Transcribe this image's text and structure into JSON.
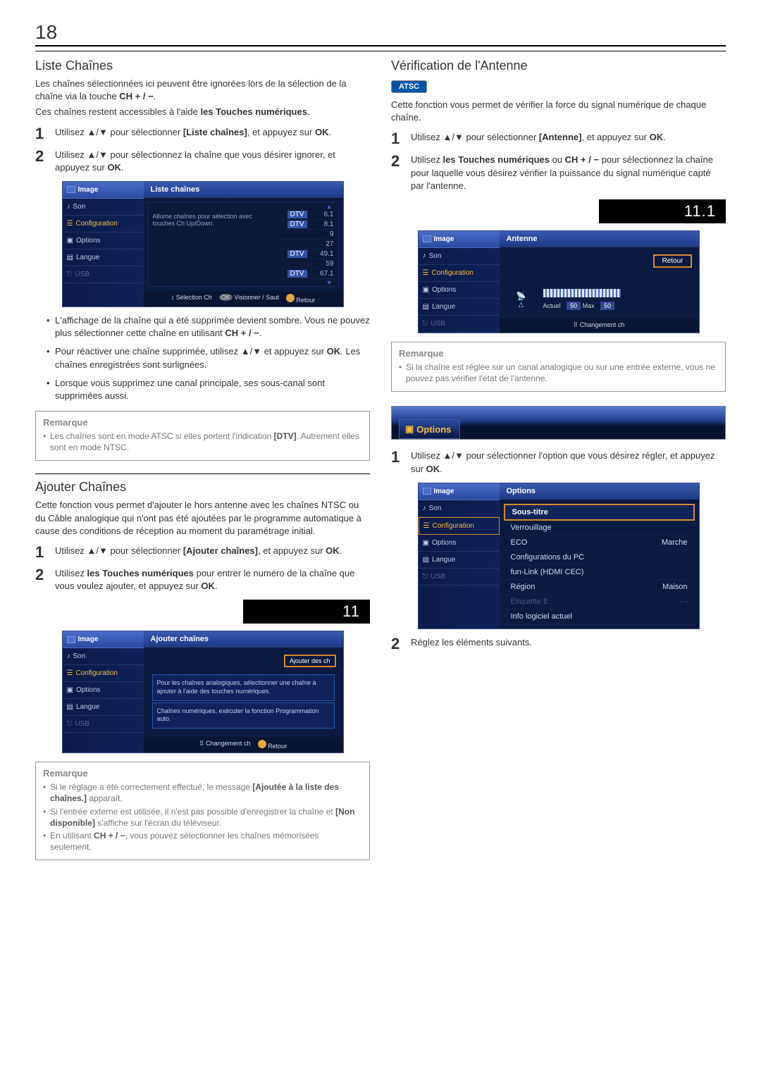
{
  "page_number": "18",
  "left": {
    "liste_chaines": {
      "title": "Liste Chaînes",
      "intro1": "Les chaînes sélectionnées ici peuvent être ignorées lors de la sélection de la chaîne via la touche ",
      "chplus": "CH + / −",
      "intro1b": ".",
      "intro2a": "Ces chaînes restent accessibles à l'aide ",
      "intro2b": "les Touches numériques",
      "intro2c": ".",
      "step1a": "Utilisez ▲/▼ pour sélectionner ",
      "step1b": "[Liste chaînes]",
      "step1c": ", et appuyez sur ",
      "step1d": "OK",
      "step1e": ".",
      "step2a": "Utilisez ▲/▼ pour sélectionnez la chaîne que vous désirer ignorer, et appuyez sur ",
      "step2b": "OK",
      "step2c": ".",
      "bullets": {
        "b1a": "L'affichage de la chaîne qui a été supprimée devient sombre. Vous ne pouvez plus sélectionner cette chaîne en utilisant ",
        "b1b": "CH + / −",
        "b1c": ".",
        "b2a": "Pour réactiver une chaîne supprimée, utilisez ▲/▼ et appuyez sur ",
        "b2b": "OK",
        "b2c": ". Les chaînes enregistrées sont surlignées.",
        "b3": "Lorsque vous supprimez une canal principale, ses sous-canal sont supprimées aussi."
      },
      "note": {
        "title": "Remarque",
        "n1a": "Les chaînes sont en mode ATSC si elles portent l'indication ",
        "n1b": "[DTV]",
        "n1c": ". Autrement elles sont en mode NTSC."
      },
      "tv": {
        "header": "Liste chaînes",
        "hint": "Allume chaînes pour sélection avec touches Ch Up/Down.",
        "rows": [
          {
            "tag": "DTV",
            "num": "6.1",
            "dim": true
          },
          {
            "tag": "DTV",
            "num": "8.1"
          },
          {
            "tag": "",
            "num": "9",
            "dim": true
          },
          {
            "tag": "",
            "num": "27",
            "dim": true
          },
          {
            "tag": "DTV",
            "num": "49.1",
            "dim": true
          },
          {
            "tag": "",
            "num": "59",
            "dim": true
          },
          {
            "tag": "DTV",
            "num": "67.1"
          }
        ],
        "foot1": "Sélection Ch",
        "foot2": "Visionner / Saut",
        "foot3": "Retour"
      }
    },
    "ajouter": {
      "title": "Ajouter Chaînes",
      "intro": "Cette fonction vous permet d'ajouter le hors antenne avec les chaînes NTSC ou du Câble analogique qui n'ont pas été ajoutées par le programme automatique à cause des conditions de réception au moment du paramétrage initial.",
      "step1a": "Utilisez ▲/▼ pour sélectionner ",
      "step1b": "[Ajouter chaînes]",
      "step1c": ", et appuyez sur ",
      "step1d": "OK",
      "step1e": ".",
      "step2a": "Utilisez ",
      "step2b": "les Touches numériques",
      "step2c": " pour entrer le numéro de la chaîne que vous voulez ajouter, et appuyez sur ",
      "step2d": "OK",
      "step2e": ".",
      "channel_display": "11",
      "tv": {
        "header": "Ajouter chaînes",
        "btn": "Ajouter des ch",
        "text1": "Pour les chaînes analogiques, sélectionner une chaîne à ajouter à l'aide des touches numériques.",
        "text2": "Chaînes numériques, exécuter la fonction Programmation auto.",
        "foot1": "Changement ch",
        "foot2": "Retour"
      },
      "note": {
        "title": "Remarque",
        "n1a": "Si le réglage a été correctement effectué, le message ",
        "n1b": "[Ajoutée à la liste des chaînes.]",
        "n1c": " apparaît.",
        "n2a": "Si l'entrée externe est utilisée, il n'est pas possible d'enregistrer la chaîne et ",
        "n2b": "[Non disponible]",
        "n2c": " s'affiche sur l'écran du téléviseur.",
        "n3a": "En utilisant ",
        "n3b": "CH + / −",
        "n3c": ", vous pouvez sélectionner les chaînes mémorisées seulement."
      }
    }
  },
  "sidebar_labels": {
    "image": "Image",
    "son": "Son",
    "config": "Configuration",
    "options": "Options",
    "langue": "Langue",
    "usb": "USB"
  },
  "right": {
    "verif": {
      "title": "Vérification de l'Antenne",
      "atsc": "ATSC",
      "intro": "Cette fonction vous permet de vérifier la force du signal numérique de chaque chaîne.",
      "step1a": "Utilisez ▲/▼ pour sélectionner ",
      "step1b": "[Antenne]",
      "step1c": ", et appuyez sur ",
      "step1d": "OK",
      "step1e": ".",
      "step2a": "Utilisez ",
      "step2b": "les Touches numériques",
      "step2c": " ou ",
      "step2d": "CH + / −",
      "step2e": " pour sélectionnez la chaîne pour laquelle vous désirez vérifier la puissance du signal numérique capté par l'antenne.",
      "channel_display": "11.1",
      "tv": {
        "header": "Antenne",
        "retour": "Retour",
        "meter_a": "Actuel",
        "meter_v1": "50",
        "meter_m": "Max",
        "meter_v2": "50",
        "foot": "Changement ch"
      },
      "note": {
        "title": "Remarque",
        "n1": "Si la chaîne est réglée sur un canal analogique ou sur une entrée externe, vous ne pouvez pas vérifier l'état de l'antenne."
      }
    },
    "options": {
      "tab": "Options",
      "step1a": "Utilisez ▲/▼ pour sélectionner l'option que vous désirez régler, et appuyez sur ",
      "step1b": "OK",
      "step1c": ".",
      "step2": "Réglez les éléments suivants.",
      "tv": {
        "header": "Options",
        "rows": [
          {
            "label": "Sous-titre",
            "val": "",
            "sel": true
          },
          {
            "label": "Verrouillage",
            "val": ""
          },
          {
            "label": "ECO",
            "val": "Marche"
          },
          {
            "label": "Configurations du PC",
            "val": ""
          },
          {
            "label": "fun-Link (HDMI CEC)",
            "val": ""
          },
          {
            "label": "Région",
            "val": "Maison"
          },
          {
            "label": "Étiquette E",
            "val": "- -",
            "dim": true
          },
          {
            "label": "Info logiciel actuel",
            "val": ""
          }
        ]
      }
    }
  }
}
